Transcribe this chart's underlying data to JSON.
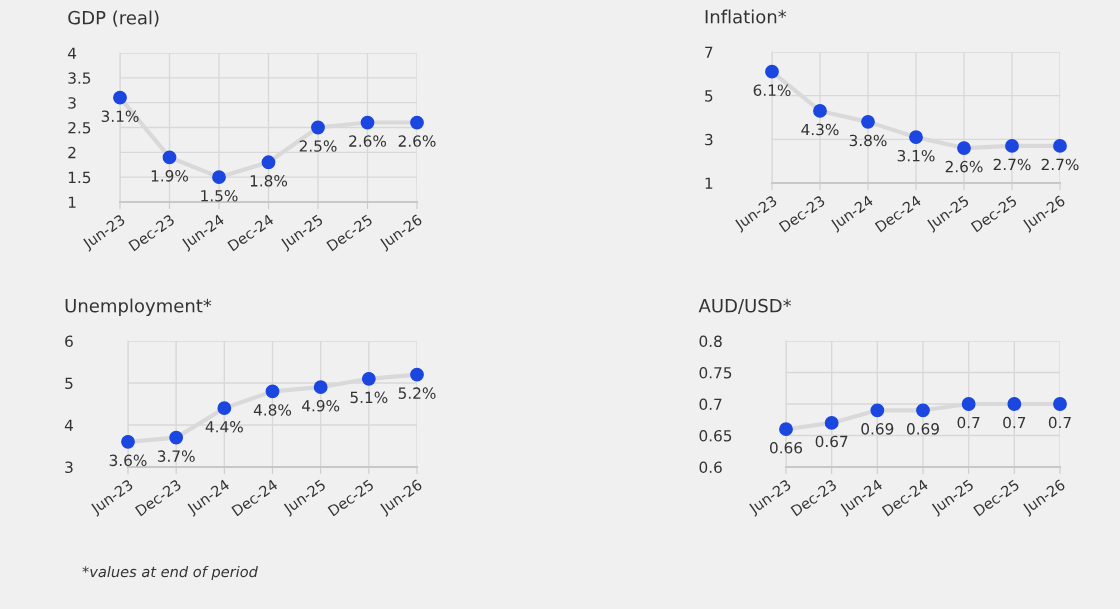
{
  "chart_data": [
    {
      "type": "line",
      "title": "GDP (real)",
      "categories": [
        "Jun-23",
        "Dec-23",
        "Jun-24",
        "Dec-24",
        "Jun-25",
        "Dec-25",
        "Jun-26"
      ],
      "ylim": [
        1,
        4
      ],
      "yticks": [
        1,
        1.5,
        2,
        2.5,
        3,
        3.5,
        4
      ],
      "grid": true,
      "series": [
        {
          "color": "#d9d9d9",
          "values": [
            3.1,
            1.9,
            1.5,
            1.8,
            2.5,
            2.6,
            2.6
          ]
        },
        {
          "type": "scatter",
          "color": "#1c46e0",
          "values": [
            3.1,
            1.9,
            1.5,
            1.8,
            2.5,
            2.6,
            2.6
          ],
          "value_labels": [
            "3.1%",
            "1.9%",
            "1.5%",
            "1.8%",
            "2.5%",
            "2.6%",
            "2.6%"
          ]
        }
      ]
    },
    {
      "type": "line",
      "title": "Inflation*",
      "categories": [
        "Jun-23",
        "Dec-23",
        "Jun-24",
        "Dec-24",
        "Jun-25",
        "Dec-25",
        "Jun-26"
      ],
      "ylim": [
        1,
        7
      ],
      "yticks": [
        1,
        3,
        5,
        7
      ],
      "grid": true,
      "series": [
        {
          "color": "#d9d9d9",
          "values": [
            6.1,
            4.3,
            3.8,
            3.1,
            2.6,
            2.7,
            2.7
          ]
        },
        {
          "type": "scatter",
          "color": "#1c46e0",
          "values": [
            6.1,
            4.3,
            3.8,
            3.1,
            2.6,
            2.7,
            2.7
          ],
          "value_labels": [
            "6.1%",
            "4.3%",
            "3.8%",
            "3.1%",
            "2.6%",
            "2.7%",
            "2.7%"
          ]
        }
      ]
    },
    {
      "type": "line",
      "title": "Unemployment*",
      "categories": [
        "Jun-23",
        "Dec-23",
        "Jun-24",
        "Dec-24",
        "Jun-25",
        "Dec-25",
        "Jun-26"
      ],
      "ylim": [
        3,
        6
      ],
      "yticks": [
        3,
        4,
        5,
        6
      ],
      "grid": true,
      "annotations": [
        "*values at end of period"
      ],
      "series": [
        {
          "color": "#d9d9d9",
          "values": [
            3.6,
            3.7,
            4.4,
            4.8,
            4.9,
            5.1,
            5.2
          ]
        },
        {
          "type": "scatter",
          "color": "#1c46e0",
          "values": [
            3.6,
            3.7,
            4.4,
            4.8,
            4.9,
            5.1,
            5.2
          ],
          "value_labels": [
            "3.6%",
            "3.7%",
            "4.4%",
            "4.8%",
            "4.9%",
            "5.1%",
            "5.2%"
          ]
        }
      ]
    },
    {
      "type": "line",
      "title": "AUD/USD*",
      "categories": [
        "Jun-23",
        "Dec-23",
        "Jun-24",
        "Dec-24",
        "Jun-25",
        "Dec-25",
        "Jun-26"
      ],
      "ylim": [
        0.6,
        0.8
      ],
      "yticks": [
        0.6,
        0.65,
        0.7,
        0.75,
        0.8
      ],
      "grid": true,
      "series": [
        {
          "color": "#d9d9d9",
          "values": [
            0.66,
            0.67,
            0.69,
            0.69,
            0.7,
            0.7,
            0.7
          ]
        },
        {
          "type": "scatter",
          "color": "#1c46e0",
          "values": [
            0.66,
            0.67,
            0.69,
            0.69,
            0.7,
            0.7,
            0.7
          ],
          "value_labels": [
            "0.66",
            "0.67",
            "0.69",
            "0.69",
            "0.7",
            "0.7",
            "0.7"
          ]
        }
      ]
    }
  ]
}
